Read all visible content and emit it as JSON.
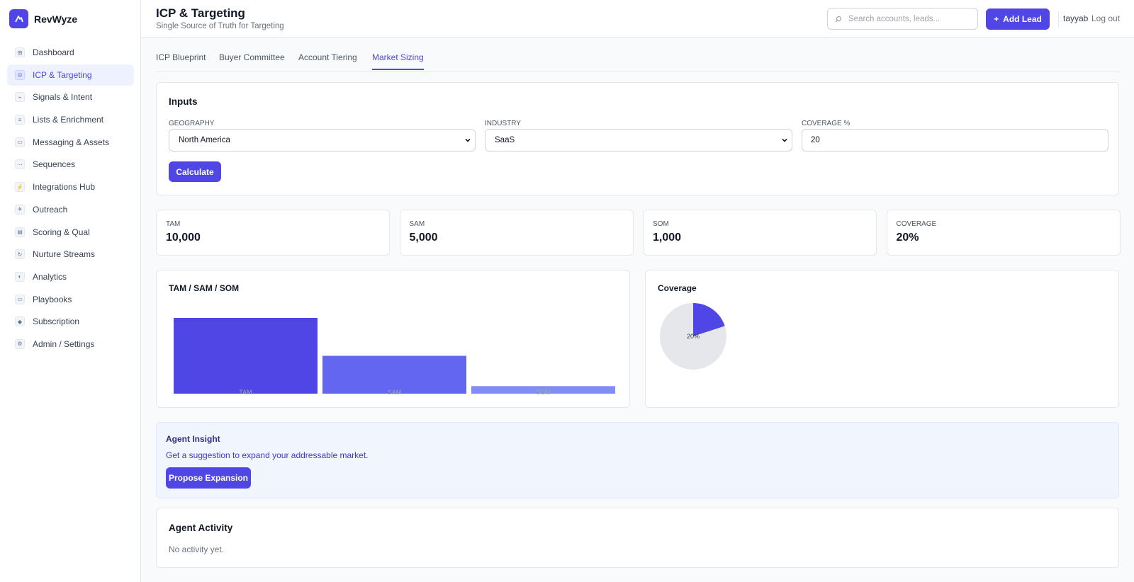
{
  "app": {
    "name": "RevWyze"
  },
  "sidebar": {
    "items": [
      {
        "label": "Dashboard",
        "icon": "⊞"
      },
      {
        "label": "ICP & Targeting",
        "icon": "◎"
      },
      {
        "label": "Signals & Intent",
        "icon": "⌁"
      },
      {
        "label": "Lists & Enrichment",
        "icon": "≡"
      },
      {
        "label": "Messaging & Assets",
        "icon": "▭"
      },
      {
        "label": "Sequences",
        "icon": "⋯"
      },
      {
        "label": "Integrations Hub",
        "icon": "⚡"
      },
      {
        "label": "Outreach",
        "icon": "✈"
      },
      {
        "label": "Scoring & Qual",
        "icon": "▤"
      },
      {
        "label": "Nurture Streams",
        "icon": "↻"
      },
      {
        "label": "Analytics",
        "icon": "◐"
      },
      {
        "label": "Playbooks",
        "icon": "▭"
      },
      {
        "label": "Subscription",
        "icon": "◆"
      },
      {
        "label": "Admin / Settings",
        "icon": "⚙"
      }
    ],
    "active_index": 1
  },
  "header": {
    "title": "ICP & Targeting",
    "subtitle": "Single Source of Truth for Targeting",
    "search_placeholder": "Search accounts, leads...",
    "add_lead_label": "Add Lead",
    "add_lead_icon": "+",
    "username": "tayyab",
    "logout_label": "Log out"
  },
  "tabs": [
    {
      "label": "ICP Blueprint",
      "active": false
    },
    {
      "label": "Buyer Committee",
      "active": false
    },
    {
      "label": "Account Tiering",
      "active": false
    },
    {
      "label": "Market Sizing",
      "active": true
    }
  ],
  "inputs": {
    "title": "Inputs",
    "geography": {
      "label": "GEOGRAPHY",
      "value": "North America"
    },
    "industry": {
      "label": "INDUSTRY",
      "value": "SaaS"
    },
    "coverage": {
      "label": "COVERAGE %",
      "value": "20"
    },
    "calculate_label": "Calculate"
  },
  "stats": [
    {
      "label": "TAM",
      "value": "10,000"
    },
    {
      "label": "SAM",
      "value": "5,000"
    },
    {
      "label": "SOM",
      "value": "1,000"
    },
    {
      "label": "COVERAGE",
      "value": "20%"
    }
  ],
  "chart_data": [
    {
      "type": "bar",
      "title": "TAM / SAM / SOM",
      "categories": [
        "TAM",
        "SAM",
        "SOM"
      ],
      "values": [
        10000,
        5000,
        1000
      ],
      "colors": [
        "#4f46e5",
        "#6366f1",
        "#818cf8"
      ],
      "ylim": [
        0,
        10000
      ]
    },
    {
      "type": "pie",
      "title": "Coverage",
      "values": [
        20,
        80
      ],
      "data_label": "20%",
      "colors": [
        "#4f46e5",
        "#e5e7eb"
      ]
    }
  ],
  "insight": {
    "title": "Agent Insight",
    "text": "Get a suggestion to expand your addressable market.",
    "button_label": "Propose Expansion"
  },
  "activity": {
    "title": "Agent Activity",
    "empty_text": "No activity yet."
  },
  "colors": {
    "accent": "#4f46e5",
    "accent_light": "#eef2ff"
  }
}
